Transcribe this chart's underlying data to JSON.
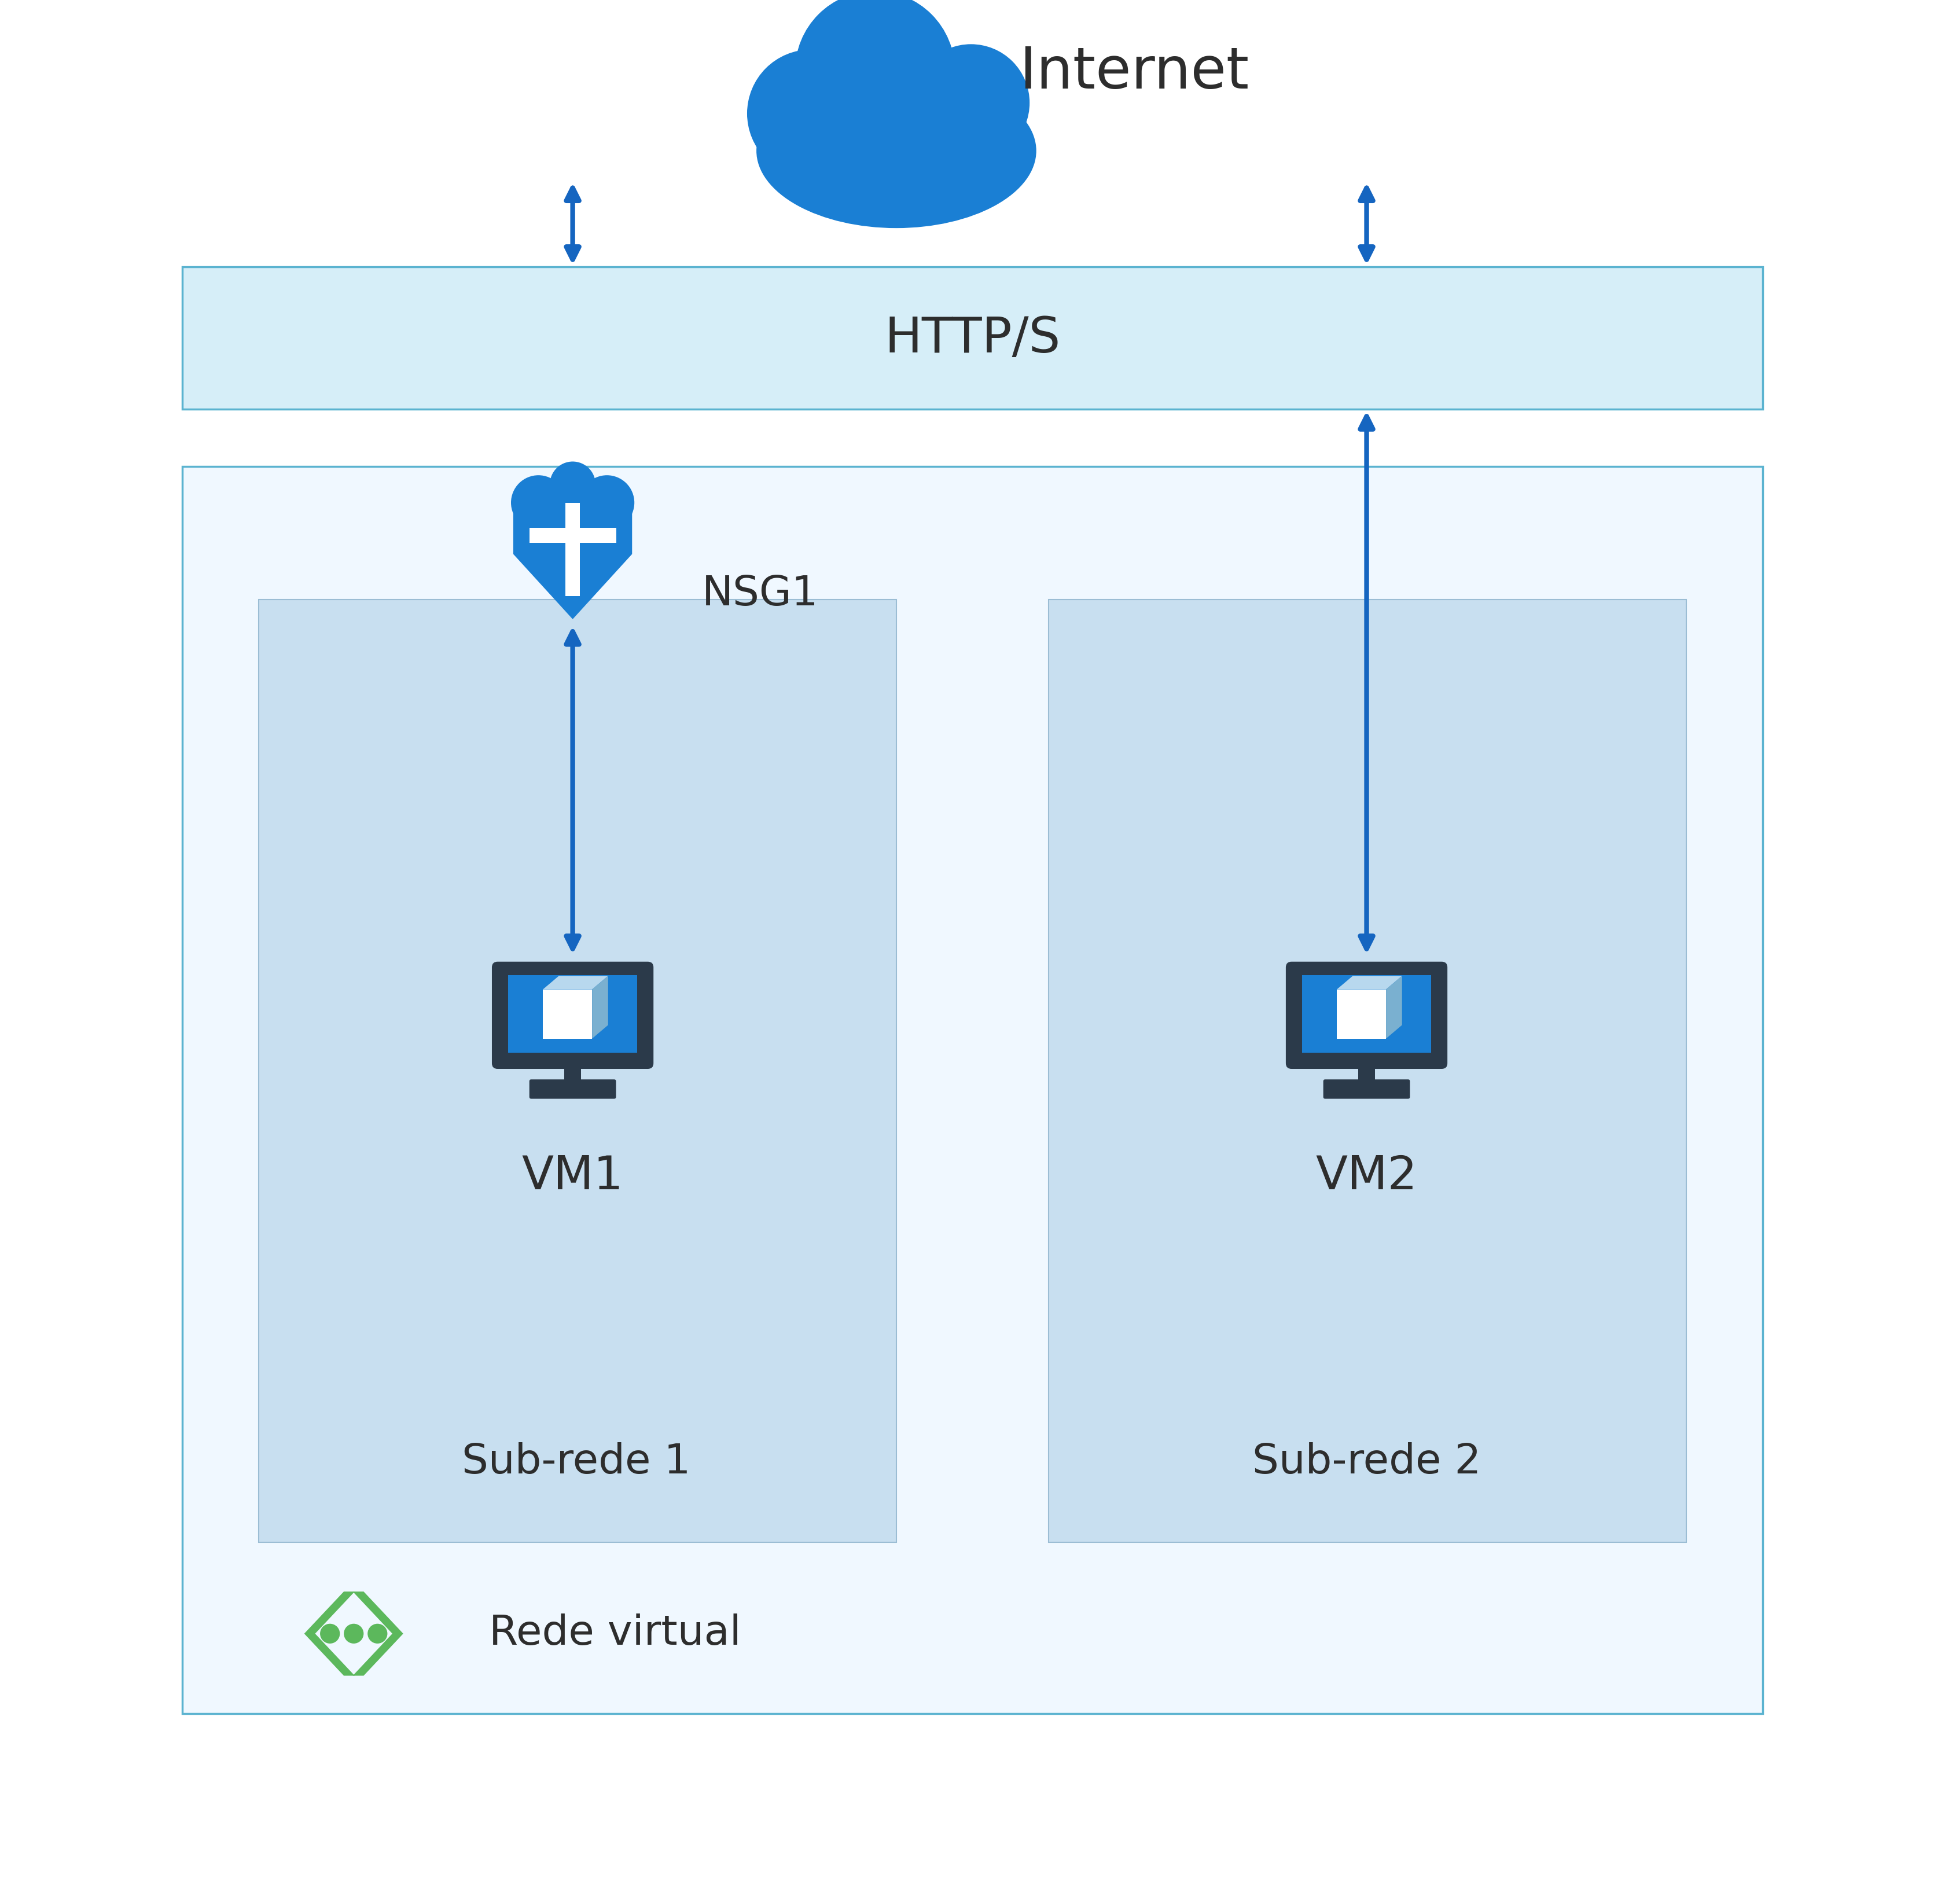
{
  "bg_color": "#ffffff",
  "internet_label": "Internet",
  "https_label": "HTTP/S",
  "nsg_label": "NSG1",
  "vm1_label": "VM1",
  "vm2_label": "VM2",
  "subnet1_label": "Sub-rede 1",
  "subnet2_label": "Sub-rede 2",
  "vnet_label": "Rede virtual",
  "arrow_color": "#1565c0",
  "box_vnet_facecolor": "#f0f8ff",
  "box_vnet_edgecolor": "#5bb3d0",
  "box_subnet_facecolor": "#c8dff0",
  "box_subnet_edgecolor": "#9bbdd4",
  "box_https_facecolor": "#d6eef8",
  "box_https_edgecolor": "#5bb3d0",
  "cloud_color": "#1a7fd4",
  "shield_blue": "#1a7fd4",
  "shield_white": "#ffffff",
  "monitor_dark": "#2b3a4a",
  "monitor_blue": "#1a7fd4",
  "monitor_icon_white": "#ffffff",
  "monitor_icon_top": "#b8d8ee",
  "monitor_icon_right": "#7ab0d0",
  "label_color": "#2d2d2d",
  "vnet_icon_green": "#5cb85c",
  "font_internet": 72,
  "font_https": 62,
  "font_nsg": 52,
  "font_vm": 58,
  "font_subnet": 52,
  "font_vnet": 52
}
